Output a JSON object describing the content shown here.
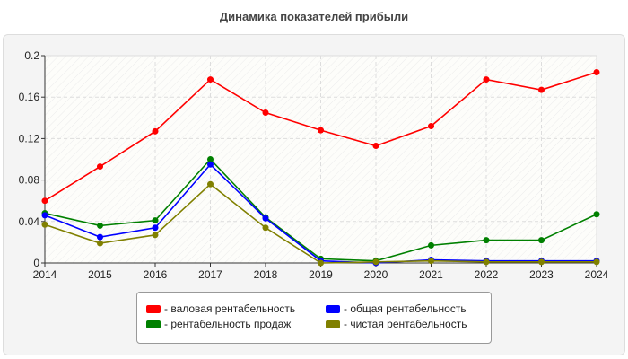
{
  "chart_data": {
    "type": "line",
    "title": "Динамика показателей прибыли",
    "x": [
      "2014",
      "2015",
      "2016",
      "2017",
      "2018",
      "2019",
      "2020",
      "2021",
      "2022",
      "2023",
      "2024"
    ],
    "ylim": [
      0,
      0.2
    ],
    "yticks": [
      "0",
      "0.04",
      "0.08",
      "0.12",
      "0.16",
      "0.2"
    ],
    "grid": true,
    "legend_position": "bottom",
    "series": [
      {
        "name": "- валовая рентабельность",
        "color": "#ff0000",
        "values": [
          0.06,
          0.093,
          0.127,
          0.177,
          0.145,
          0.128,
          0.113,
          0.132,
          0.177,
          0.167,
          0.184
        ]
      },
      {
        "name": "- общая рентабельность",
        "color": "#0000ff",
        "values": [
          0.046,
          0.025,
          0.034,
          0.095,
          0.043,
          0.002,
          0.0,
          0.003,
          0.002,
          0.002,
          0.002
        ]
      },
      {
        "name": "- рентабельность продаж",
        "color": "#008000",
        "values": [
          0.048,
          0.036,
          0.041,
          0.1,
          0.044,
          0.004,
          0.002,
          0.017,
          0.022,
          0.022,
          0.047
        ]
      },
      {
        "name": "- чистая рентабельность",
        "color": "#808000",
        "values": [
          0.037,
          0.019,
          0.027,
          0.076,
          0.034,
          0.0,
          0.001,
          0.002,
          0.001,
          0.001,
          0.001
        ]
      }
    ]
  }
}
